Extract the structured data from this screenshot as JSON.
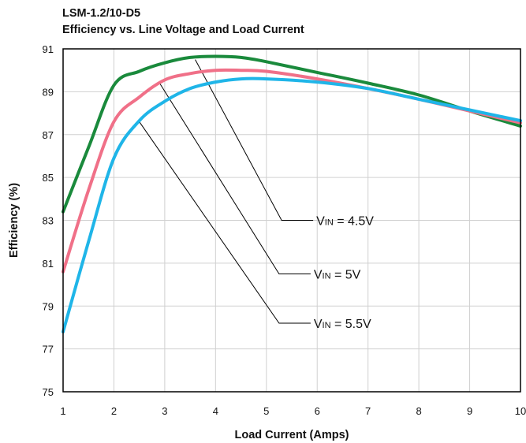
{
  "chart_data": {
    "type": "line",
    "title": "LSM-1.2/10-D5",
    "subtitle": "Efficiency vs. Line Voltage and Load Current",
    "xlabel": "Load Current (Amps)",
    "ylabel": "Efficiency (%)",
    "xlim": [
      1,
      10
    ],
    "ylim": [
      75,
      91
    ],
    "xticks": [
      1,
      2,
      3,
      4,
      5,
      6,
      7,
      8,
      9,
      10
    ],
    "yticks": [
      75,
      77,
      79,
      81,
      83,
      85,
      87,
      89,
      91
    ],
    "grid": true,
    "series": [
      {
        "name": "VIN = 4.5V",
        "color": "#1a8a3c",
        "x": [
          1,
          1.5,
          2,
          2.5,
          3,
          3.5,
          4,
          4.5,
          5,
          6,
          7,
          8,
          9,
          10
        ],
        "y": [
          83.4,
          86.4,
          89.3,
          89.95,
          90.35,
          90.6,
          90.65,
          90.6,
          90.4,
          89.9,
          89.4,
          88.85,
          88.1,
          87.4
        ]
      },
      {
        "name": "VIN = 5V",
        "color": "#f07088",
        "x": [
          1,
          1.5,
          2,
          2.5,
          3,
          3.5,
          4,
          4.5,
          5,
          6,
          7,
          8,
          9,
          10
        ],
        "y": [
          80.6,
          84.4,
          87.6,
          88.75,
          89.55,
          89.85,
          90.0,
          90.0,
          89.95,
          89.6,
          89.15,
          88.65,
          88.1,
          87.55
        ]
      },
      {
        "name": "VIN = 5.5V",
        "color": "#1fb5e8",
        "x": [
          1,
          1.5,
          2,
          2.5,
          3,
          3.5,
          4,
          4.5,
          5,
          6,
          7,
          8,
          9,
          10
        ],
        "y": [
          77.8,
          82.0,
          85.9,
          87.65,
          88.55,
          89.15,
          89.45,
          89.6,
          89.6,
          89.45,
          89.15,
          88.65,
          88.15,
          87.65
        ]
      }
    ],
    "annotations": [
      {
        "target": "VIN = 4.5V",
        "prefix": "V",
        "sub": "IN",
        "rest": " = 4.5V",
        "point_x": 3.6,
        "point_y": 90.5,
        "label_x": 5.3,
        "label_y": 83.0
      },
      {
        "target": "VIN = 5V",
        "prefix": "V",
        "sub": "IN",
        "rest": " = 5V",
        "point_x": 2.9,
        "point_y": 89.4,
        "label_x": 5.25,
        "label_y": 80.5
      },
      {
        "target": "VIN = 5.5V",
        "prefix": "V",
        "sub": "IN",
        "rest": " = 5.5V",
        "point_x": 2.5,
        "point_y": 87.6,
        "label_x": 5.25,
        "label_y": 78.2
      }
    ]
  }
}
